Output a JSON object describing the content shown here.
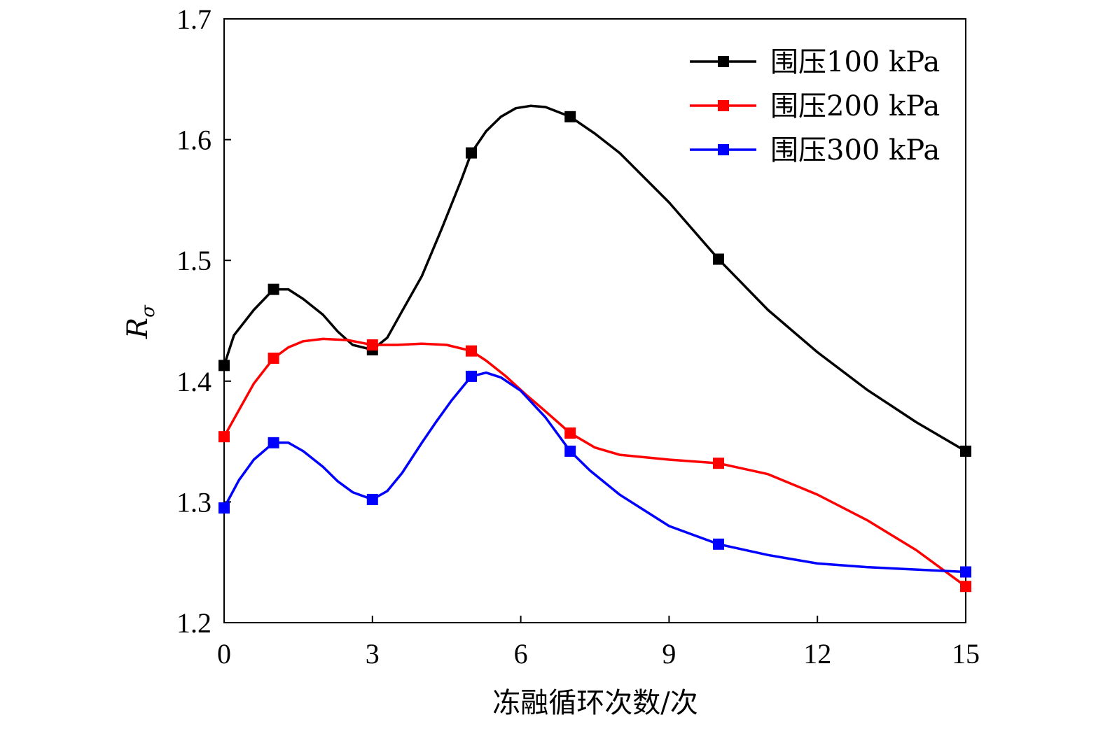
{
  "chart_data": {
    "type": "line",
    "title": "",
    "xlabel": "冻融循环次数/次",
    "ylabel_main": "R",
    "ylabel_sub": "σ",
    "xlim": [
      0,
      15
    ],
    "ylim": [
      1.2,
      1.7
    ],
    "xticks": [
      0,
      3,
      6,
      9,
      12,
      15
    ],
    "xtick_labels": [
      "0",
      "3",
      "6",
      "9",
      "12",
      "15"
    ],
    "yticks": [
      1.2,
      1.3,
      1.4,
      1.5,
      1.6,
      1.7
    ],
    "ytick_labels": [
      "1.2",
      "1.3",
      "1.4",
      "1.5",
      "1.6",
      "1.7"
    ],
    "grid": false,
    "legend_position": "top-right",
    "x": [
      0,
      1,
      3,
      5,
      7,
      10,
      15
    ],
    "series": [
      {
        "name": "围压100 kPa",
        "color": "#000000",
        "values": [
          1.413,
          1.476,
          1.426,
          1.589,
          1.619,
          1.501,
          1.342
        ],
        "curve": [
          [
            0,
            1.413
          ],
          [
            0.2,
            1.438
          ],
          [
            0.6,
            1.459
          ],
          [
            1,
            1.476
          ],
          [
            1.3,
            1.476
          ],
          [
            1.6,
            1.468
          ],
          [
            2,
            1.455
          ],
          [
            2.3,
            1.441
          ],
          [
            2.6,
            1.43
          ],
          [
            3,
            1.426
          ],
          [
            3.3,
            1.436
          ],
          [
            3.6,
            1.458
          ],
          [
            4,
            1.487
          ],
          [
            4.4,
            1.526
          ],
          [
            4.8,
            1.567
          ],
          [
            5,
            1.589
          ],
          [
            5.3,
            1.607
          ],
          [
            5.6,
            1.619
          ],
          [
            5.9,
            1.626
          ],
          [
            6.2,
            1.628
          ],
          [
            6.5,
            1.627
          ],
          [
            7,
            1.619
          ],
          [
            7.5,
            1.605
          ],
          [
            8,
            1.589
          ],
          [
            9,
            1.548
          ],
          [
            10,
            1.501
          ],
          [
            11,
            1.459
          ],
          [
            12,
            1.424
          ],
          [
            13,
            1.393
          ],
          [
            14,
            1.366
          ],
          [
            15,
            1.342
          ]
        ]
      },
      {
        "name": "围压200 kPa",
        "color": "#ff0000",
        "values": [
          1.354,
          1.419,
          1.43,
          1.425,
          1.357,
          1.332,
          1.23
        ],
        "curve": [
          [
            0,
            1.354
          ],
          [
            0.3,
            1.376
          ],
          [
            0.6,
            1.398
          ],
          [
            1,
            1.419
          ],
          [
            1.3,
            1.428
          ],
          [
            1.6,
            1.433
          ],
          [
            2,
            1.435
          ],
          [
            2.5,
            1.434
          ],
          [
            3,
            1.43
          ],
          [
            3.5,
            1.43
          ],
          [
            4,
            1.431
          ],
          [
            4.5,
            1.43
          ],
          [
            5,
            1.425
          ],
          [
            5.3,
            1.417
          ],
          [
            5.7,
            1.404
          ],
          [
            6.1,
            1.389
          ],
          [
            6.5,
            1.375
          ],
          [
            7,
            1.357
          ],
          [
            7.5,
            1.345
          ],
          [
            8,
            1.339
          ],
          [
            9,
            1.335
          ],
          [
            10,
            1.332
          ],
          [
            11,
            1.323
          ],
          [
            12,
            1.306
          ],
          [
            13,
            1.285
          ],
          [
            14,
            1.26
          ],
          [
            15,
            1.23
          ]
        ]
      },
      {
        "name": "围压300 kPa",
        "color": "#0000ff",
        "values": [
          1.295,
          1.349,
          1.302,
          1.404,
          1.342,
          1.265,
          1.242
        ],
        "curve": [
          [
            0,
            1.295
          ],
          [
            0.3,
            1.318
          ],
          [
            0.6,
            1.335
          ],
          [
            1,
            1.349
          ],
          [
            1.3,
            1.349
          ],
          [
            1.6,
            1.342
          ],
          [
            2,
            1.329
          ],
          [
            2.3,
            1.317
          ],
          [
            2.6,
            1.308
          ],
          [
            3,
            1.302
          ],
          [
            3.3,
            1.309
          ],
          [
            3.6,
            1.324
          ],
          [
            4,
            1.349
          ],
          [
            4.3,
            1.367
          ],
          [
            4.6,
            1.384
          ],
          [
            5,
            1.404
          ],
          [
            5.3,
            1.407
          ],
          [
            5.6,
            1.403
          ],
          [
            6,
            1.392
          ],
          [
            6.5,
            1.37
          ],
          [
            7,
            1.342
          ],
          [
            7.4,
            1.326
          ],
          [
            8,
            1.306
          ],
          [
            9,
            1.28
          ],
          [
            10,
            1.265
          ],
          [
            11,
            1.256
          ],
          [
            12,
            1.249
          ],
          [
            13,
            1.246
          ],
          [
            14,
            1.244
          ],
          [
            15,
            1.242
          ]
        ]
      }
    ]
  }
}
